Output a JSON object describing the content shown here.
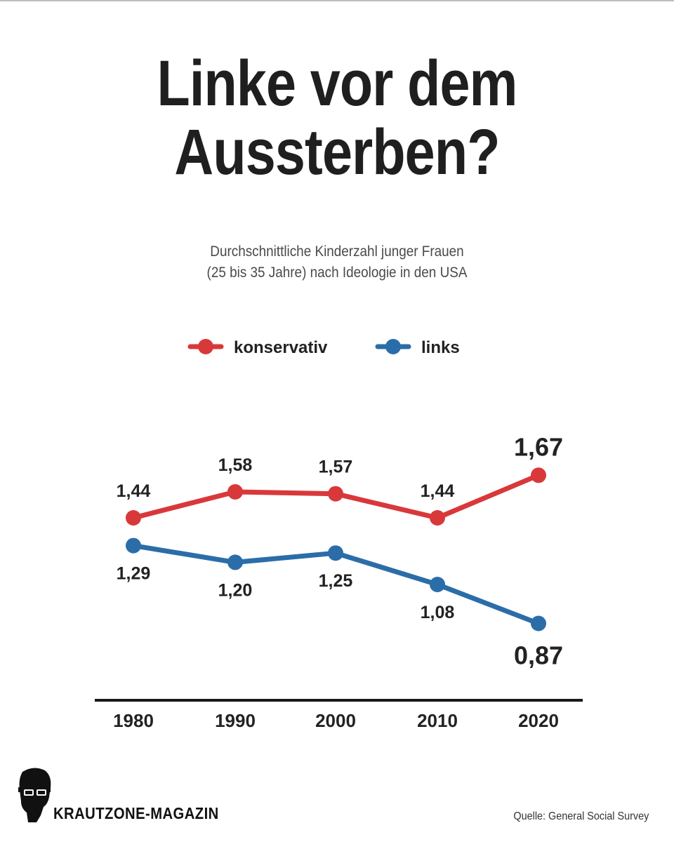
{
  "title_line1": "Linke vor dem",
  "title_line2": "Aussterben?",
  "subtitle_line1": "Durchschnittliche Kinderzahl junger Frauen",
  "subtitle_line2": "(25 bis 35 Jahre) nach Ideologie in den USA",
  "brand": "KRAUTZONE-MAGAZIN",
  "source": "Quelle: General Social Survey",
  "chart_data": {
    "type": "line",
    "x": [
      "1980",
      "1990",
      "2000",
      "2010",
      "2020"
    ],
    "series": [
      {
        "name": "konservativ",
        "color": "#d9383a",
        "values": [
          1.44,
          1.58,
          1.57,
          1.44,
          1.67
        ],
        "labels": [
          "1,44",
          "1,58",
          "1,57",
          "1,44",
          "1,67"
        ]
      },
      {
        "name": "links",
        "color": "#2b6da8",
        "values": [
          1.29,
          1.2,
          1.25,
          1.08,
          0.87
        ],
        "labels": [
          "1,29",
          "1,20",
          "1,25",
          "1,08",
          "0,87"
        ]
      }
    ],
    "grid": false,
    "legend_position": "top-center"
  }
}
